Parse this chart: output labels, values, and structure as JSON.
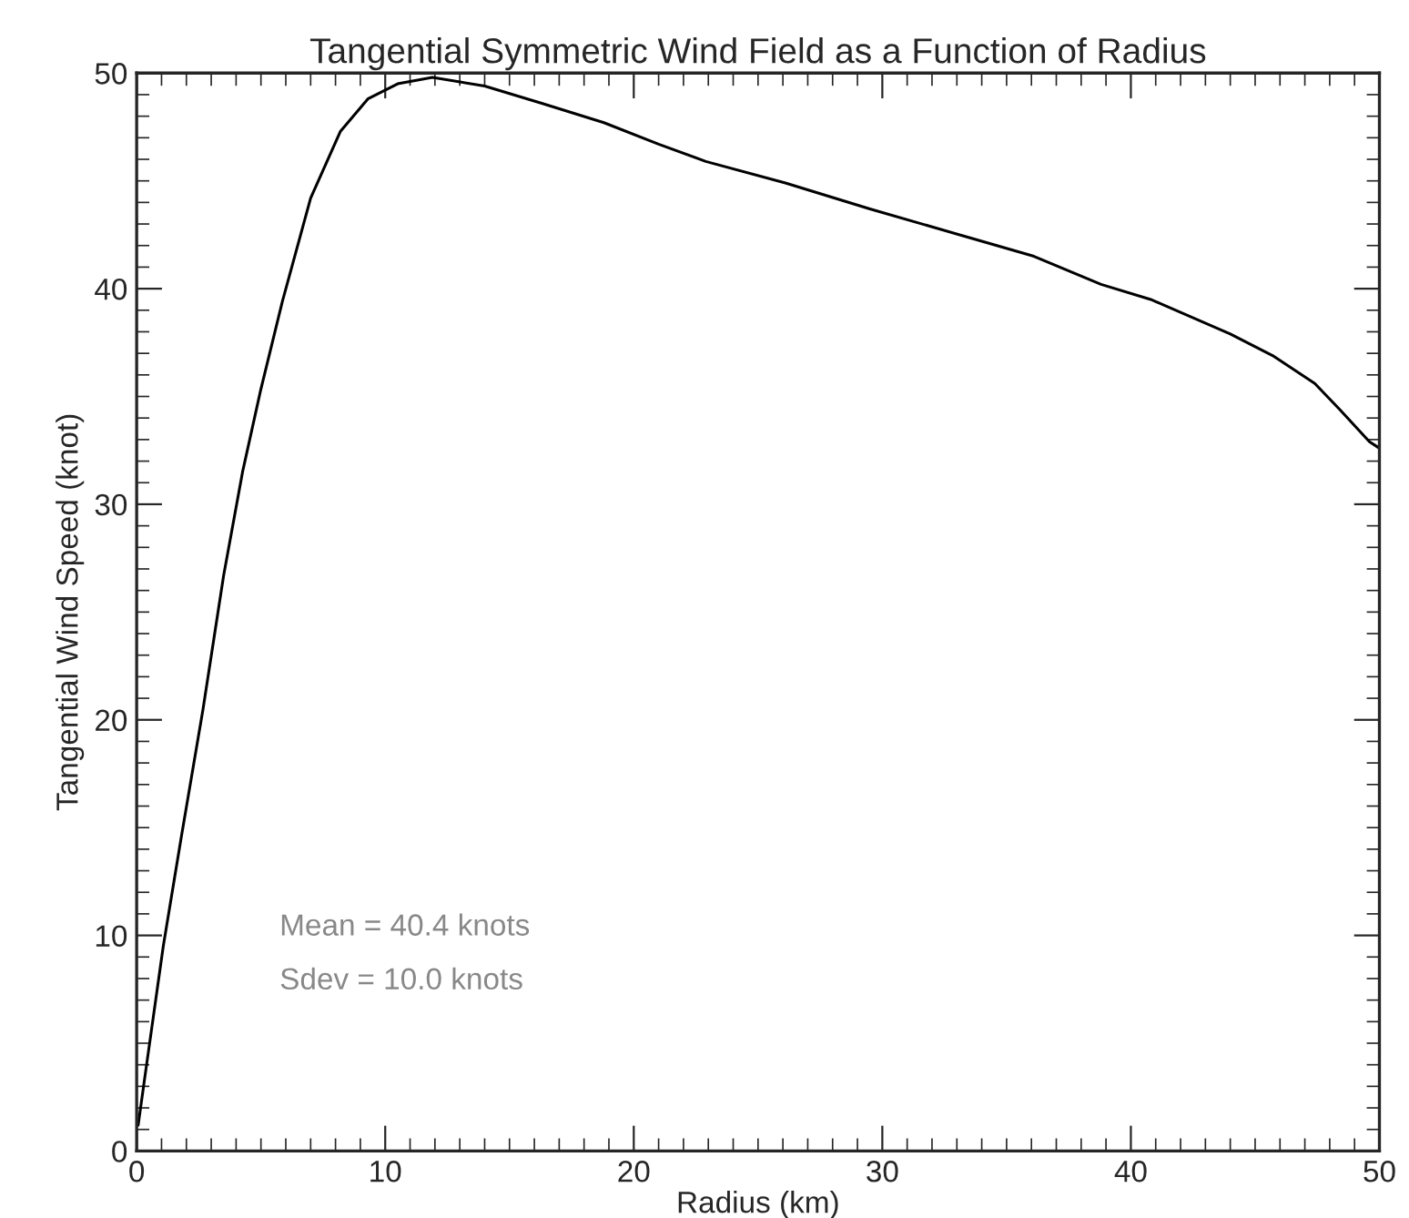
{
  "chart_data": {
    "type": "line",
    "title": "Tangential Symmetric Wind Field as a Function of Radius",
    "xlabel": "Radius (km)",
    "ylabel": "Tangential Wind Speed (knot)",
    "x": [
      0.06,
      0.35,
      1.07,
      1.8,
      2.67,
      3.5,
      4.26,
      4.99,
      5.86,
      7.0,
      8.2,
      9.3,
      10.5,
      11.9,
      14.0,
      16.3,
      18.8,
      21.0,
      22.9,
      26.1,
      29.5,
      33.4,
      36.1,
      38.8,
      40.8,
      44.0,
      45.7,
      47.4,
      48.4,
      49.6,
      50.0
    ],
    "series": [
      {
        "color": "#000000",
        "values": [
          1.2,
          3.6,
          9.5,
          14.6,
          20.5,
          26.7,
          31.5,
          35.3,
          39.4,
          44.2,
          47.3,
          48.8,
          49.5,
          49.8,
          49.4,
          48.6,
          47.7,
          46.7,
          45.9,
          44.9,
          43.7,
          42.4,
          41.5,
          40.2,
          39.5,
          37.9,
          36.9,
          35.6,
          34.4,
          32.9,
          32.6
        ]
      }
    ],
    "xlim": [
      0,
      50
    ],
    "ylim": [
      0,
      50
    ],
    "xticks": [
      0,
      10,
      20,
      30,
      40,
      50
    ],
    "yticks": [
      0,
      10,
      20,
      30,
      40,
      50
    ],
    "grid": false,
    "marker": "none",
    "line_style": "solid",
    "annotations": [
      "Mean = 40.4 knots",
      "Sdev = 10.0 knots"
    ]
  }
}
